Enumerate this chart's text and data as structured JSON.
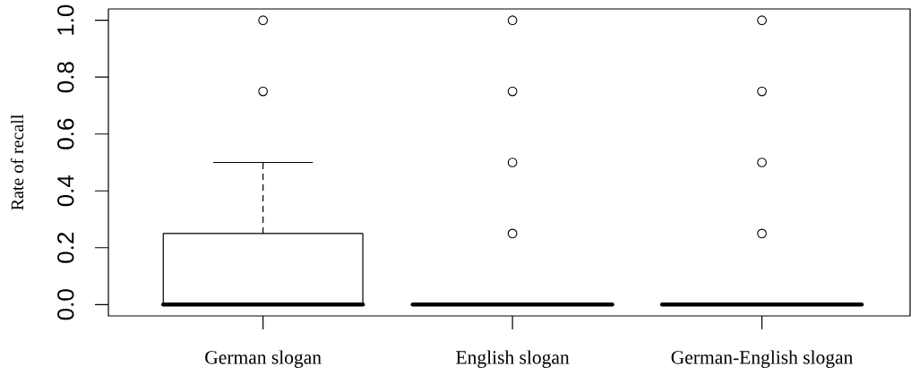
{
  "chart_data": {
    "type": "box",
    "ylabel": "Rate of recall",
    "categories": [
      "German slogan",
      "English slogan",
      "German-English slogan"
    ],
    "boxes": [
      {
        "low": 0,
        "q1": 0,
        "median": 0,
        "q3": 0.25,
        "high": 0.5,
        "outliers": [
          0.75,
          1
        ]
      },
      {
        "low": 0,
        "q1": 0,
        "median": 0,
        "q3": 0,
        "high": 0,
        "outliers": [
          0.25,
          0.5,
          0.75,
          1
        ]
      },
      {
        "low": 0,
        "q1": 0,
        "median": 0,
        "q3": 0,
        "high": 0,
        "outliers": [
          0.25,
          0.5,
          0.75,
          1
        ]
      }
    ],
    "color": "#000000",
    "marker": "circle",
    "ylim": [
      -0.04,
      1.04
    ],
    "yticks": [
      {
        "value": 0,
        "label": "0.0"
      },
      0.2,
      0.4,
      0.6,
      0.8,
      {
        "value": 1,
        "label": "1.0"
      }
    ]
  }
}
